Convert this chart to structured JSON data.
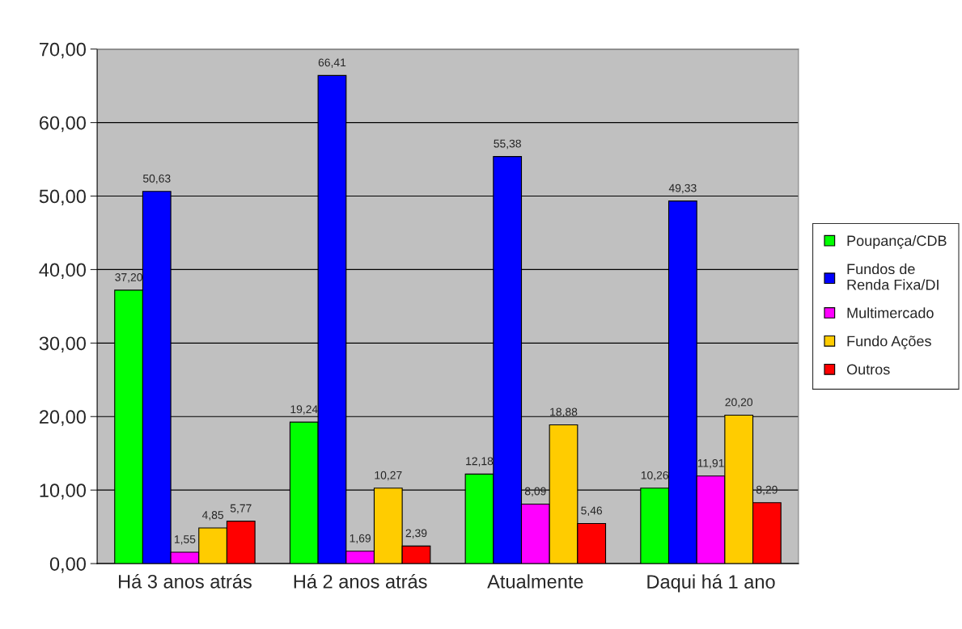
{
  "chart_data": {
    "type": "bar",
    "categories": [
      "Há 3 anos atrás",
      "Há 2 anos atrás",
      "Atualmente",
      "Daqui há 1 ano"
    ],
    "series": [
      {
        "name": "Poupança/CDB",
        "color": "#00ff00",
        "values": [
          37.2,
          19.24,
          12.18,
          10.26
        ],
        "value_labels": [
          "37,20",
          "19,24",
          "12,18",
          "10,26"
        ]
      },
      {
        "name": "Fundos de\nRenda Fixa/DI",
        "color": "#0000ff",
        "values": [
          50.63,
          66.41,
          55.38,
          49.33
        ],
        "value_labels": [
          "50,63",
          "66,41",
          "55,38",
          "49,33"
        ]
      },
      {
        "name": "Multimercado",
        "color": "#ff00ff",
        "values": [
          1.55,
          1.69,
          8.09,
          11.91
        ],
        "value_labels": [
          "1,55",
          "1,69",
          "8,09",
          "11,91"
        ]
      },
      {
        "name": "Fundo Ações",
        "color": "#ffcc00",
        "values": [
          4.85,
          10.27,
          18.88,
          20.2
        ],
        "value_labels": [
          "4,85",
          "10,27",
          "18,88",
          "20,20"
        ]
      },
      {
        "name": "Outros",
        "color": "#ff0000",
        "values": [
          5.77,
          2.39,
          5.46,
          8.29
        ],
        "value_labels": [
          "5,77",
          "2,39",
          "5,46",
          "8,29"
        ]
      }
    ],
    "ylim": [
      0,
      70
    ],
    "yticks": [
      {
        "value": 0,
        "label": "0,00"
      },
      {
        "value": 10,
        "label": "10,00"
      },
      {
        "value": 20,
        "label": "20,00"
      },
      {
        "value": 30,
        "label": "30,00"
      },
      {
        "value": 40,
        "label": "40,00"
      },
      {
        "value": 50,
        "label": "50,00"
      },
      {
        "value": 60,
        "label": "60,00"
      },
      {
        "value": 70,
        "label": "70,00"
      }
    ],
    "grid": "y",
    "legend": "right"
  }
}
